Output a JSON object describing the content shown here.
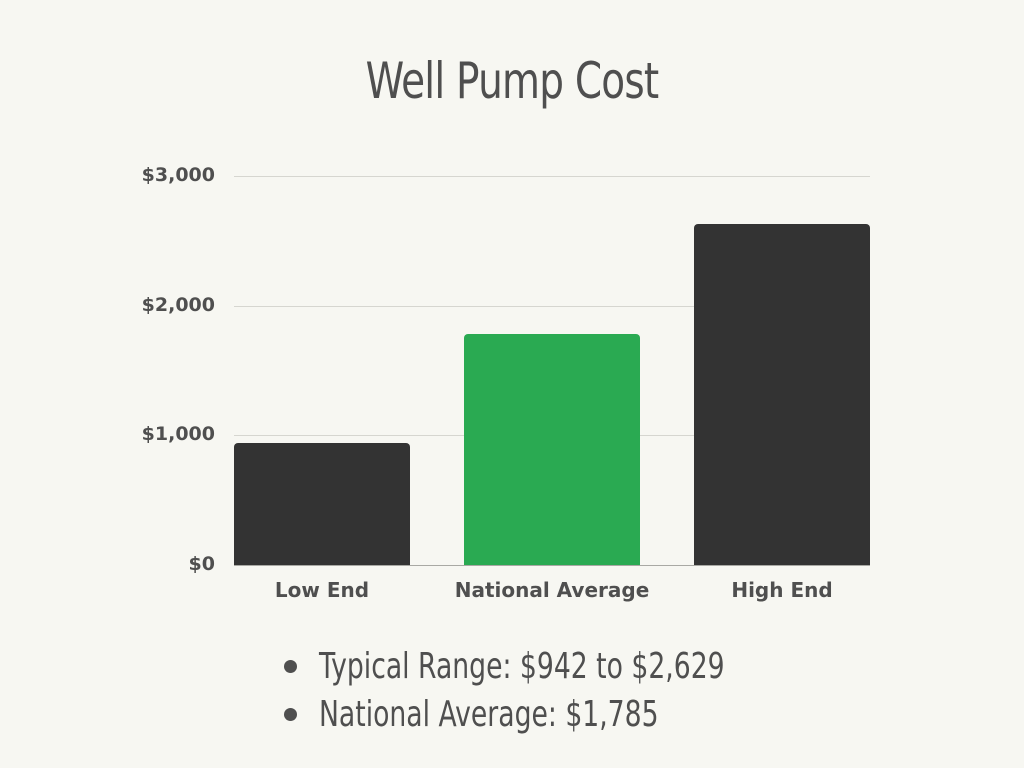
{
  "title": "Well Pump Cost",
  "colors": {
    "background": "#f7f7f2",
    "bar_dark": "#333333",
    "bar_highlight": "#2aaa52",
    "text": "#4f4f4f",
    "grid": "#d6d6d0"
  },
  "yaxis": {
    "ticks": [
      "$3,000",
      "$2,000",
      "$1,000",
      "$0"
    ]
  },
  "bars": [
    {
      "label": "Low End",
      "value": 942
    },
    {
      "label": "National Average",
      "value": 1785
    },
    {
      "label": "High End",
      "value": 2629
    }
  ],
  "notes": [
    "Typical Range: $942 to $2,629",
    "National Average: $1,785"
  ],
  "chart_data": {
    "type": "bar",
    "title": "Well Pump Cost",
    "categories": [
      "Low End",
      "National Average",
      "High End"
    ],
    "values": [
      942,
      1785,
      2629
    ],
    "xlabel": "",
    "ylabel": "",
    "ylim": [
      0,
      3000
    ],
    "yticks": [
      0,
      1000,
      2000,
      3000
    ],
    "ytick_labels": [
      "$0",
      "$1,000",
      "$2,000",
      "$3,000"
    ],
    "grid": true,
    "legend": null,
    "highlighted_category": "National Average",
    "colors": [
      "#333333",
      "#2aaa52",
      "#333333"
    ],
    "annotations": [
      "Typical Range: $942 to $2,629",
      "National Average: $1,785"
    ]
  }
}
